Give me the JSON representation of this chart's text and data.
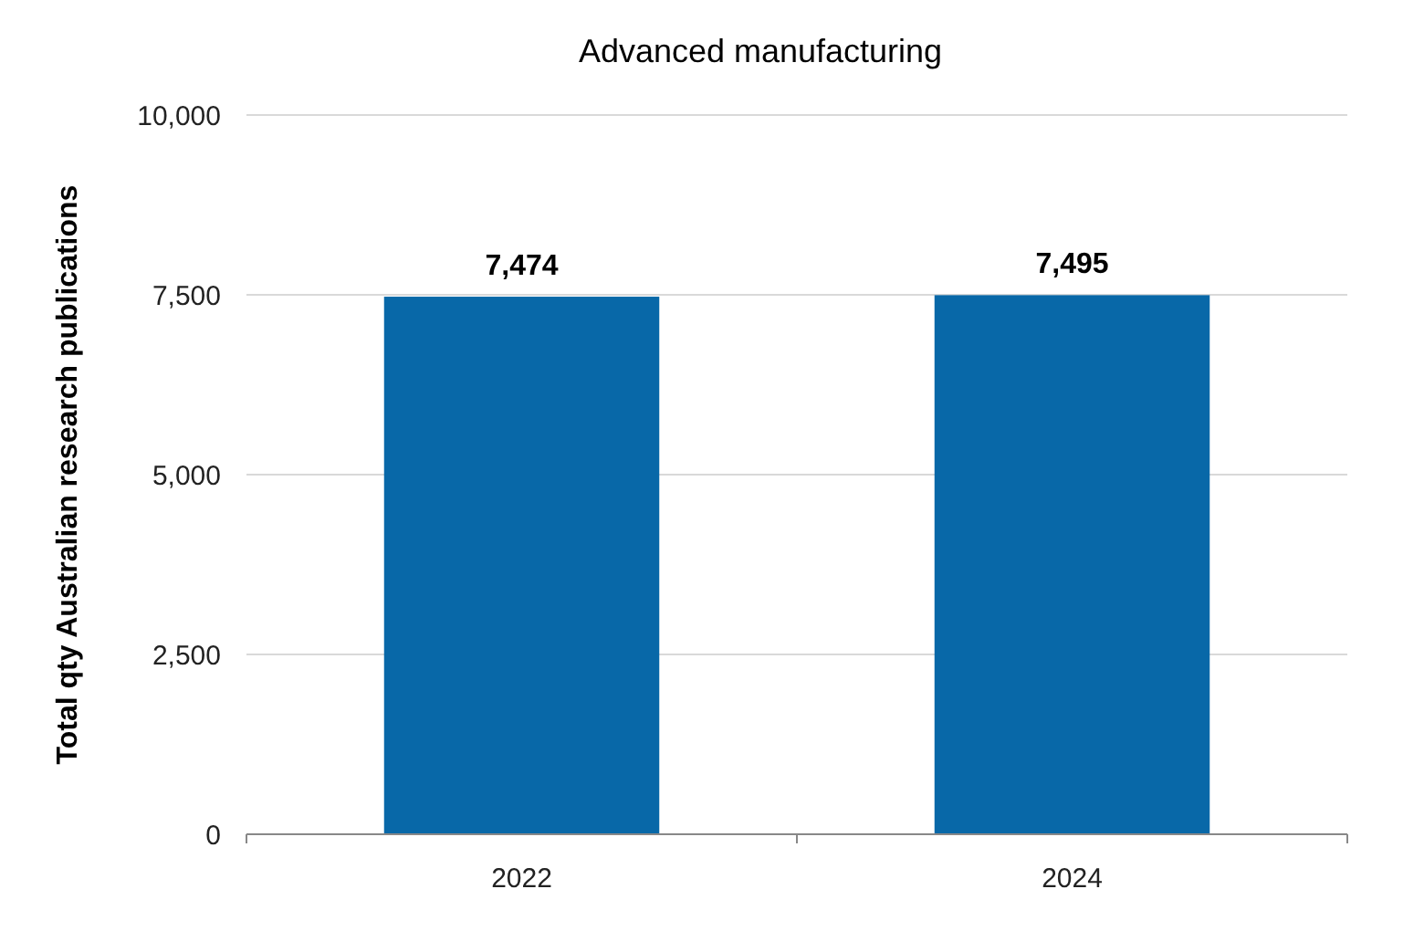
{
  "chart_data": {
    "type": "bar",
    "title": "Advanced manufacturing",
    "ylabel": "Total qty Australian research publications",
    "categories": [
      "2022",
      "2024"
    ],
    "values": [
      7474,
      7495
    ],
    "value_labels": [
      "7,474",
      "7,495"
    ],
    "color": "#0868a8",
    "ylim": [
      0,
      10000
    ],
    "yticks": [
      {
        "value": 0,
        "label": "0"
      },
      {
        "value": 2500,
        "label": "2,500"
      },
      {
        "value": 5000,
        "label": "5,000"
      },
      {
        "value": 7500,
        "label": "7,500"
      },
      {
        "value": 10000,
        "label": "10,000"
      }
    ],
    "grid": "y"
  }
}
